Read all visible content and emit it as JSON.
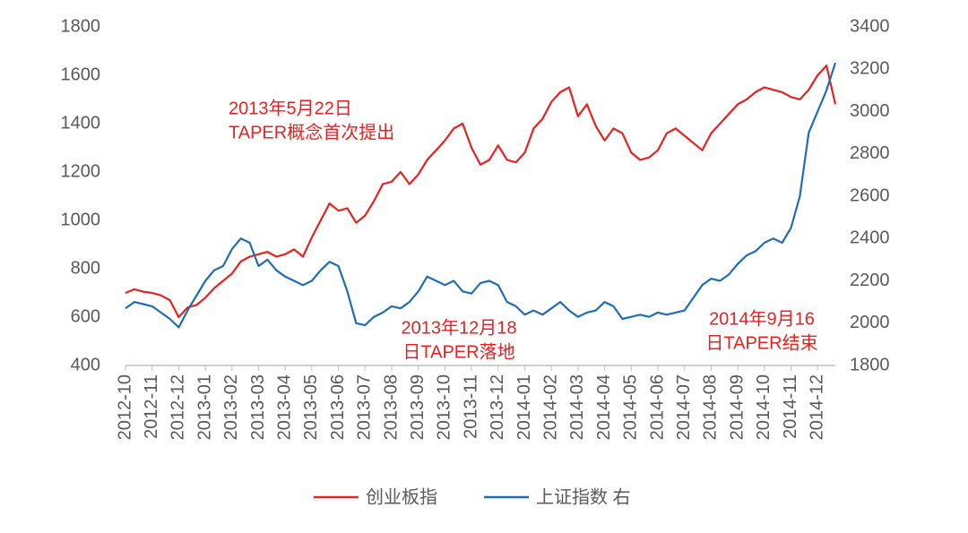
{
  "chart_data": {
    "type": "line",
    "categories": [
      "2012-10",
      null,
      null,
      "2012-11",
      null,
      null,
      "2012-12",
      null,
      null,
      "2013-01",
      null,
      null,
      "2013-02",
      null,
      null,
      "2013-03",
      null,
      null,
      "2013-04",
      null,
      null,
      "2013-05",
      null,
      null,
      "2013-06",
      null,
      null,
      "2013-07",
      null,
      null,
      "2013-08",
      null,
      null,
      "2013-09",
      null,
      null,
      "2013-10",
      null,
      null,
      "2013-11",
      null,
      null,
      "2013-12",
      null,
      null,
      "2014-01",
      null,
      null,
      "2014-02",
      null,
      null,
      "2014-03",
      null,
      null,
      "2014-04",
      null,
      null,
      "2014-05",
      null,
      null,
      "2014-06",
      null,
      null,
      "2014-07",
      null,
      null,
      "2014-08",
      null,
      null,
      "2014-09",
      null,
      null,
      "2014-10",
      null,
      null,
      "2014-11",
      null,
      null,
      "2014-12",
      null,
      null
    ],
    "series": [
      {
        "name": "创业板指",
        "color": "#e8221f",
        "values": [
          700,
          715,
          705,
          700,
          690,
          670,
          600,
          640,
          650,
          680,
          720,
          750,
          780,
          830,
          850,
          860,
          870,
          850,
          860,
          880,
          850,
          930,
          1000,
          1070,
          1040,
          1050,
          990,
          1020,
          1080,
          1150,
          1160,
          1200,
          1150,
          1190,
          1250,
          1290,
          1330,
          1380,
          1400,
          1300,
          1230,
          1250,
          1310,
          1250,
          1240,
          1280,
          1380,
          1420,
          1490,
          1530,
          1550,
          1430,
          1480,
          1390,
          1330,
          1380,
          1360,
          1280,
          1250,
          1260,
          1290,
          1360,
          1380,
          1350,
          1320,
          1290,
          1360,
          1400,
          1440,
          1480,
          1500,
          1530,
          1550,
          1540,
          1530,
          1510,
          1500,
          1540,
          1600,
          1640,
          1480
        ]
      },
      {
        "name": "上证指数 右",
        "color": "#1f6db3",
        "axis": "y2",
        "values": [
          2070,
          2100,
          2090,
          2080,
          2050,
          2020,
          1980,
          2060,
          2130,
          2200,
          2250,
          2270,
          2350,
          2400,
          2380,
          2270,
          2300,
          2250,
          2220,
          2200,
          2180,
          2200,
          2250,
          2290,
          2270,
          2150,
          2000,
          1990,
          2030,
          2050,
          2080,
          2070,
          2100,
          2150,
          2220,
          2200,
          2180,
          2200,
          2150,
          2140,
          2190,
          2200,
          2180,
          2100,
          2080,
          2040,
          2060,
          2040,
          2070,
          2100,
          2060,
          2030,
          2050,
          2060,
          2100,
          2080,
          2020,
          2030,
          2040,
          2030,
          2050,
          2040,
          2050,
          2060,
          2120,
          2180,
          2210,
          2200,
          2230,
          2280,
          2320,
          2340,
          2380,
          2400,
          2380,
          2450,
          2600,
          2900,
          3000,
          3100,
          3230
        ]
      }
    ],
    "ylim": [
      400,
      1800
    ],
    "yticks": [
      400,
      600,
      800,
      1000,
      1200,
      1400,
      1600,
      1800
    ],
    "y2lim": [
      1800,
      3400
    ],
    "y2ticks": [
      1800,
      2000,
      2200,
      2400,
      2600,
      2800,
      3000,
      3200,
      3400
    ],
    "annotations": [
      {
        "lines": [
          "2013年5月22日",
          "TAPER概念首次提出"
        ],
        "color": "#e8221f"
      },
      {
        "lines": [
          "2013年12月18",
          "日TAPER落地"
        ],
        "color": "#e8221f"
      },
      {
        "lines": [
          "2014年9月16",
          "日TAPER结束"
        ],
        "color": "#e8221f"
      }
    ]
  }
}
